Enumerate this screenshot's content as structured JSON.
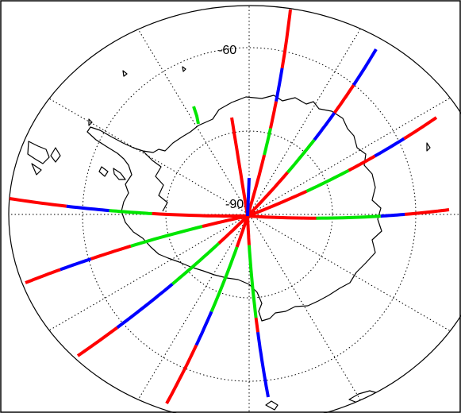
{
  "map": {
    "projection": "polar",
    "hemisphere": "south",
    "colors": {
      "background": "#ffffff",
      "frame": "#000000",
      "graticule": "#000000",
      "coastline": "#000000",
      "track_red": "#ff0000",
      "track_green": "#00e600",
      "track_blue": "#0000ff"
    },
    "labels": {
      "lat_ring": "-60",
      "pole": "-90"
    },
    "layers": [
      "boundary-circle",
      "graticule",
      "coastline",
      "satellite-tracks"
    ]
  }
}
